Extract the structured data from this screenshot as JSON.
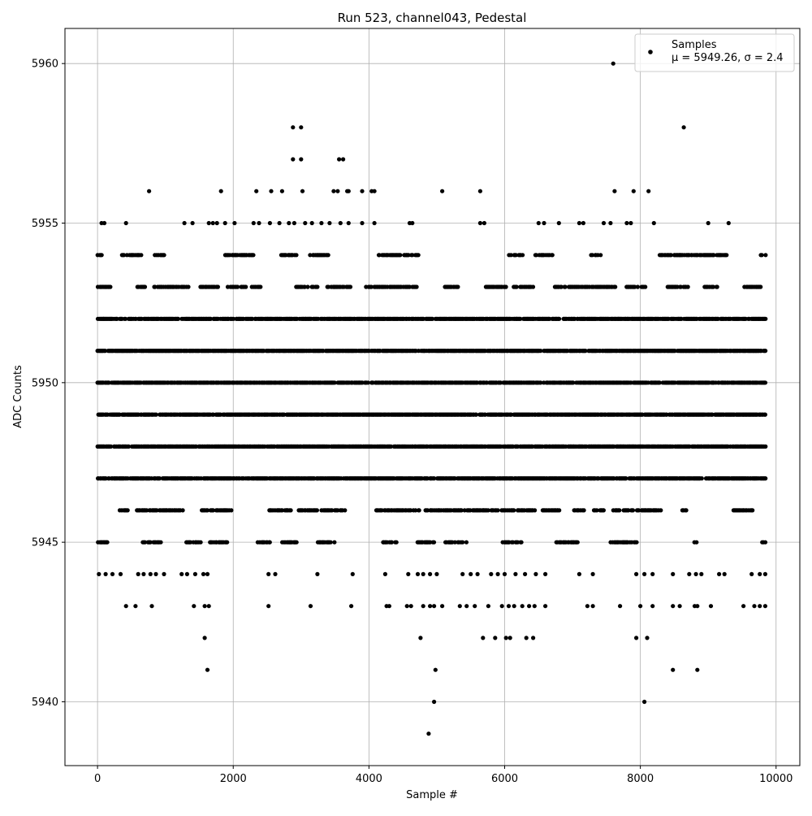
{
  "chart_data": {
    "type": "scatter",
    "title": "Run 523, channel043, Pedestal",
    "xlabel": "Sample #",
    "ylabel": "ADC Counts",
    "xlim": [
      -480,
      10350
    ],
    "ylim": [
      5938,
      5961.1
    ],
    "xticks": [
      0,
      2000,
      4000,
      6000,
      8000,
      10000
    ],
    "yticks": [
      5940,
      5945,
      5950,
      5955,
      5960
    ],
    "grid": true,
    "legend_position": "top-right",
    "marker_color": "#000000",
    "legend": {
      "series_name": "Samples",
      "stats_label": "μ = 5949.26, σ = 2.4"
    },
    "dense_bands": [
      {
        "y": 5947,
        "x_range": [
          0,
          9850
        ]
      },
      {
        "y": 5948,
        "x_range": [
          0,
          9850
        ]
      },
      {
        "y": 5949,
        "x_range": [
          0,
          9850
        ]
      },
      {
        "y": 5950,
        "x_range": [
          0,
          9850
        ]
      },
      {
        "y": 5951,
        "x_range": [
          0,
          9850
        ]
      },
      {
        "y": 5952,
        "x_range": [
          0,
          9850
        ]
      }
    ],
    "sparse_bands": [
      {
        "y": 5946,
        "density": 0.55
      },
      {
        "y": 5953,
        "density": 0.55
      },
      {
        "y": 5945,
        "density": 0.35
      },
      {
        "y": 5954,
        "density": 0.35
      }
    ],
    "points": [
      [
        7600,
        5960
      ],
      [
        2880,
        5958
      ],
      [
        3000,
        5958
      ],
      [
        8640,
        5958
      ],
      [
        2880,
        5957
      ],
      [
        3000,
        5957
      ],
      [
        3560,
        5957
      ],
      [
        3620,
        5957
      ],
      [
        760,
        5956
      ],
      [
        1820,
        5956
      ],
      [
        2340,
        5956
      ],
      [
        2560,
        5956
      ],
      [
        2720,
        5956
      ],
      [
        3020,
        5956
      ],
      [
        3480,
        5956
      ],
      [
        3540,
        5956
      ],
      [
        3680,
        5956
      ],
      [
        3700,
        5956
      ],
      [
        3900,
        5956
      ],
      [
        4040,
        5956
      ],
      [
        4080,
        5956
      ],
      [
        5080,
        5956
      ],
      [
        5640,
        5956
      ],
      [
        7620,
        5956
      ],
      [
        7900,
        5956
      ],
      [
        8120,
        5956
      ],
      [
        60,
        5955
      ],
      [
        100,
        5955
      ],
      [
        420,
        5955
      ],
      [
        1280,
        5955
      ],
      [
        1400,
        5955
      ],
      [
        1640,
        5955
      ],
      [
        1700,
        5955
      ],
      [
        1760,
        5955
      ],
      [
        1880,
        5955
      ],
      [
        2020,
        5955
      ],
      [
        2300,
        5955
      ],
      [
        2380,
        5955
      ],
      [
        2540,
        5955
      ],
      [
        2680,
        5955
      ],
      [
        2820,
        5955
      ],
      [
        2900,
        5955
      ],
      [
        3060,
        5955
      ],
      [
        3160,
        5955
      ],
      [
        3300,
        5955
      ],
      [
        3420,
        5955
      ],
      [
        3580,
        5955
      ],
      [
        3700,
        5955
      ],
      [
        3900,
        5955
      ],
      [
        4080,
        5955
      ],
      [
        4600,
        5955
      ],
      [
        4640,
        5955
      ],
      [
        5640,
        5955
      ],
      [
        5700,
        5955
      ],
      [
        6500,
        5955
      ],
      [
        6580,
        5955
      ],
      [
        6800,
        5955
      ],
      [
        7100,
        5955
      ],
      [
        7160,
        5955
      ],
      [
        7460,
        5955
      ],
      [
        7560,
        5955
      ],
      [
        7800,
        5955
      ],
      [
        7860,
        5955
      ],
      [
        8200,
        5955
      ],
      [
        9000,
        5955
      ],
      [
        9300,
        5955
      ],
      [
        20,
        5944
      ],
      [
        120,
        5944
      ],
      [
        220,
        5944
      ],
      [
        340,
        5944
      ],
      [
        600,
        5944
      ],
      [
        680,
        5944
      ],
      [
        780,
        5944
      ],
      [
        860,
        5944
      ],
      [
        980,
        5944
      ],
      [
        1240,
        5944
      ],
      [
        1320,
        5944
      ],
      [
        1440,
        5944
      ],
      [
        1560,
        5944
      ],
      [
        1620,
        5944
      ],
      [
        2520,
        5944
      ],
      [
        2620,
        5944
      ],
      [
        3240,
        5944
      ],
      [
        3760,
        5944
      ],
      [
        4240,
        5944
      ],
      [
        4580,
        5944
      ],
      [
        4720,
        5944
      ],
      [
        4800,
        5944
      ],
      [
        4900,
        5944
      ],
      [
        5000,
        5944
      ],
      [
        5380,
        5944
      ],
      [
        5500,
        5944
      ],
      [
        5600,
        5944
      ],
      [
        5800,
        5944
      ],
      [
        5900,
        5944
      ],
      [
        6000,
        5944
      ],
      [
        6160,
        5944
      ],
      [
        6300,
        5944
      ],
      [
        6460,
        5944
      ],
      [
        6600,
        5944
      ],
      [
        7100,
        5944
      ],
      [
        7300,
        5944
      ],
      [
        7940,
        5944
      ],
      [
        8060,
        5944
      ],
      [
        8180,
        5944
      ],
      [
        8480,
        5944
      ],
      [
        8720,
        5944
      ],
      [
        8820,
        5944
      ],
      [
        8900,
        5944
      ],
      [
        9160,
        5944
      ],
      [
        9240,
        5944
      ],
      [
        9640,
        5944
      ],
      [
        9760,
        5944
      ],
      [
        9840,
        5944
      ],
      [
        420,
        5943
      ],
      [
        560,
        5943
      ],
      [
        800,
        5943
      ],
      [
        1420,
        5943
      ],
      [
        1580,
        5943
      ],
      [
        1640,
        5943
      ],
      [
        2520,
        5943
      ],
      [
        3140,
        5943
      ],
      [
        3740,
        5943
      ],
      [
        4260,
        5943
      ],
      [
        4300,
        5943
      ],
      [
        4560,
        5943
      ],
      [
        4620,
        5943
      ],
      [
        4800,
        5943
      ],
      [
        4900,
        5943
      ],
      [
        4960,
        5943
      ],
      [
        5080,
        5943
      ],
      [
        5340,
        5943
      ],
      [
        5440,
        5943
      ],
      [
        5560,
        5943
      ],
      [
        5760,
        5943
      ],
      [
        5960,
        5943
      ],
      [
        6060,
        5943
      ],
      [
        6140,
        5943
      ],
      [
        6260,
        5943
      ],
      [
        6360,
        5943
      ],
      [
        6440,
        5943
      ],
      [
        6600,
        5943
      ],
      [
        7220,
        5943
      ],
      [
        7300,
        5943
      ],
      [
        7700,
        5943
      ],
      [
        8000,
        5943
      ],
      [
        8180,
        5943
      ],
      [
        8480,
        5943
      ],
      [
        8580,
        5943
      ],
      [
        8800,
        5943
      ],
      [
        8840,
        5943
      ],
      [
        9040,
        5943
      ],
      [
        9520,
        5943
      ],
      [
        9680,
        5943
      ],
      [
        9760,
        5943
      ],
      [
        9840,
        5943
      ],
      [
        1580,
        5942
      ],
      [
        4760,
        5942
      ],
      [
        5680,
        5942
      ],
      [
        5860,
        5942
      ],
      [
        6020,
        5942
      ],
      [
        6080,
        5942
      ],
      [
        6320,
        5942
      ],
      [
        6420,
        5942
      ],
      [
        7940,
        5942
      ],
      [
        8100,
        5942
      ],
      [
        1620,
        5941
      ],
      [
        4980,
        5941
      ],
      [
        8480,
        5941
      ],
      [
        8840,
        5941
      ],
      [
        4960,
        5940
      ],
      [
        8060,
        5940
      ],
      [
        4880,
        5939
      ]
    ]
  }
}
